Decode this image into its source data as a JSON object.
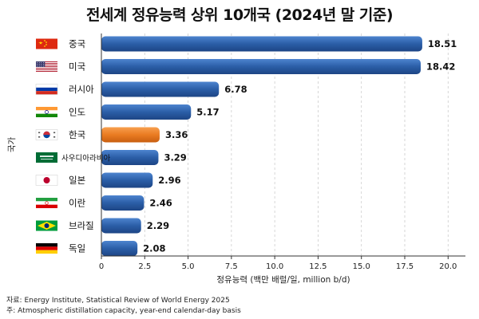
{
  "chart_data": {
    "type": "bar",
    "orientation": "horizontal",
    "title": "전세계 정유능력 상위 10개국 (2024년 말 기준)",
    "xlabel": "정유능력 (백만 배럴/일, million b/d)",
    "ylabel": "국가",
    "xlim": [
      0,
      21
    ],
    "xticks": [
      "0",
      "2.5",
      "5.0",
      "7.5",
      "10.0",
      "12.5",
      "15.0",
      "17.5",
      "20.0"
    ],
    "xtick_values": [
      0,
      2.5,
      5,
      7.5,
      10,
      12.5,
      15,
      17.5,
      20
    ],
    "grid": "vertical dashed",
    "categories": [
      "중국",
      "미국",
      "러시아",
      "인도",
      "한국",
      "사우디아라비아",
      "일본",
      "이란",
      "브라질",
      "독일"
    ],
    "values": [
      18.51,
      18.42,
      6.78,
      5.17,
      3.36,
      3.29,
      2.96,
      2.46,
      2.29,
      2.08
    ],
    "value_labels": [
      "18.51",
      "18.42",
      "6.78",
      "5.17",
      "3.36",
      "3.29",
      "2.96",
      "2.46",
      "2.29",
      "2.08"
    ],
    "flags": [
      "china-flag-icon",
      "usa-flag-icon",
      "russia-flag-icon",
      "india-flag-icon",
      "south-korea-flag-icon",
      "saudi-arabia-flag-icon",
      "japan-flag-icon",
      "iran-flag-icon",
      "brazil-flag-icon",
      "germany-flag-icon"
    ],
    "highlight_index": 4,
    "colors": {
      "bar": "#2b5ea7",
      "bar_highlight": "#ea7b22",
      "grid": "#cccccc"
    }
  },
  "notes": {
    "source": "자료: Energy Institute, Statistical Review of World Energy 2025",
    "note": "주:  Atmospheric distillation capacity, year-end calendar-day basis"
  }
}
